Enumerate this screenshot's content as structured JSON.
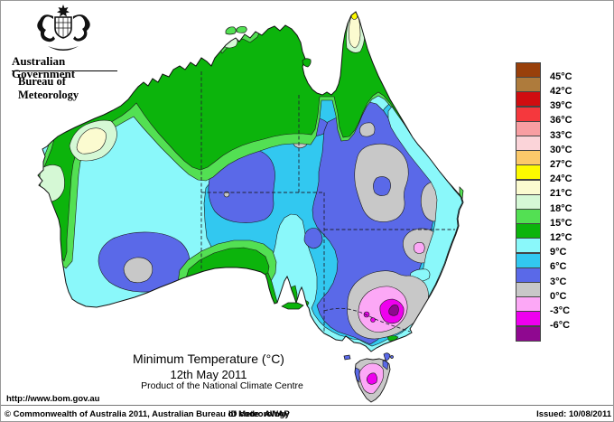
{
  "header": {
    "government": "Australian Government",
    "bureau": "Bureau of Meteorology",
    "coat_of_arms_icon": "australian-coat-of-arms"
  },
  "title_block": {
    "title": "Minimum Temperature (°C)",
    "date": "12th May 2011",
    "product": "Product of the National Climate Centre"
  },
  "legend": {
    "labels": [
      "45°C",
      "42°C",
      "39°C",
      "36°C",
      "33°C",
      "30°C",
      "27°C",
      "24°C",
      "21°C",
      "18°C",
      "15°C",
      "12°C",
      "9°C",
      "6°C",
      "3°C",
      "0°C",
      "-3°C",
      "-6°C"
    ],
    "order": [
      "brown",
      "tan",
      "darkred",
      "red",
      "salmon",
      "palepink",
      "apricot",
      "yellow",
      "cream",
      "palegreen",
      "lightgreen",
      "green",
      "cyan",
      "skyblue",
      "blue",
      "gray",
      "pink",
      "magenta",
      "purple"
    ]
  },
  "palette": {
    "brown": "#99400A",
    "tan": "#AE7B3C",
    "darkred": "#D00D10",
    "red": "#F5383D",
    "salmon": "#F89EA2",
    "palepink": "#FBD4D9",
    "apricot": "#FBC96A",
    "yellow": "#FDFA00",
    "cream": "#FBFBD0",
    "palegreen": "#D5F8D5",
    "lightgreen": "#53E053",
    "green": "#0CB40C",
    "cyan": "#8AF8FA",
    "skyblue": "#32C8F0",
    "blue": "#5A69E8",
    "gray": "#C8C8C8",
    "pink": "#FCA8F6",
    "magenta": "#EE00EE",
    "purple": "#8F0890"
  },
  "footer": {
    "url": "http://www.bom.gov.au",
    "copyright": "© Commonwealth of Australia 2011, Australian Bureau of Meteorology",
    "id_code": "ID code: AWAP",
    "issued": "Issued: 10/08/2011"
  }
}
